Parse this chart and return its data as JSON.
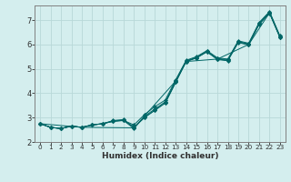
{
  "xlabel": "Humidex (Indice chaleur)",
  "bg_color": "#d4eeee",
  "grid_color": "#b8d8d8",
  "line_color": "#006666",
  "xlim": [
    -0.5,
    23.5
  ],
  "ylim": [
    2.0,
    7.6
  ],
  "yticks": [
    2,
    3,
    4,
    5,
    6,
    7
  ],
  "xticks": [
    0,
    1,
    2,
    3,
    4,
    5,
    6,
    7,
    8,
    9,
    10,
    11,
    12,
    13,
    14,
    15,
    16,
    17,
    18,
    19,
    20,
    21,
    22,
    23
  ],
  "series1": [
    [
      0,
      2.75
    ],
    [
      1,
      2.6
    ],
    [
      2,
      2.55
    ],
    [
      3,
      2.65
    ],
    [
      4,
      2.6
    ],
    [
      5,
      2.7
    ],
    [
      6,
      2.75
    ],
    [
      7,
      2.88
    ],
    [
      8,
      2.92
    ],
    [
      9,
      2.6
    ],
    [
      10,
      3.0
    ],
    [
      11,
      3.3
    ],
    [
      12,
      3.6
    ],
    [
      13,
      4.45
    ],
    [
      14,
      5.3
    ],
    [
      15,
      5.45
    ],
    [
      16,
      5.7
    ],
    [
      17,
      5.4
    ],
    [
      18,
      5.35
    ],
    [
      19,
      6.1
    ],
    [
      20,
      6.0
    ],
    [
      21,
      6.85
    ],
    [
      22,
      7.3
    ],
    [
      23,
      6.3
    ]
  ],
  "series2": [
    [
      0,
      2.75
    ],
    [
      1,
      2.6
    ],
    [
      2,
      2.55
    ],
    [
      3,
      2.65
    ],
    [
      4,
      2.6
    ],
    [
      5,
      2.7
    ],
    [
      6,
      2.75
    ],
    [
      7,
      2.85
    ],
    [
      8,
      2.88
    ],
    [
      9,
      2.55
    ],
    [
      10,
      3.05
    ],
    [
      11,
      3.35
    ],
    [
      12,
      3.65
    ],
    [
      13,
      4.5
    ],
    [
      14,
      5.32
    ],
    [
      15,
      5.48
    ],
    [
      16,
      5.72
    ],
    [
      17,
      5.42
    ],
    [
      18,
      5.38
    ],
    [
      19,
      6.12
    ],
    [
      20,
      6.02
    ],
    [
      21,
      6.87
    ],
    [
      22,
      7.32
    ],
    [
      23,
      6.32
    ]
  ],
  "series3": [
    [
      0,
      2.75
    ],
    [
      1,
      2.6
    ],
    [
      2,
      2.55
    ],
    [
      3,
      2.65
    ],
    [
      4,
      2.6
    ],
    [
      5,
      2.7
    ],
    [
      6,
      2.75
    ],
    [
      7,
      2.85
    ],
    [
      8,
      2.88
    ],
    [
      9,
      2.7
    ],
    [
      10,
      3.12
    ],
    [
      11,
      3.45
    ],
    [
      12,
      3.72
    ],
    [
      13,
      4.55
    ],
    [
      14,
      5.35
    ],
    [
      15,
      5.5
    ],
    [
      16,
      5.75
    ],
    [
      17,
      5.45
    ],
    [
      18,
      5.4
    ],
    [
      19,
      6.15
    ],
    [
      20,
      6.05
    ],
    [
      21,
      6.9
    ],
    [
      22,
      7.35
    ],
    [
      23,
      6.35
    ]
  ],
  "series4": [
    [
      0,
      2.75
    ],
    [
      1,
      2.6
    ],
    [
      2,
      2.55
    ],
    [
      3,
      2.65
    ],
    [
      4,
      2.6
    ],
    [
      5,
      2.7
    ],
    [
      6,
      2.75
    ],
    [
      7,
      2.85
    ],
    [
      8,
      2.9
    ],
    [
      9,
      2.6
    ],
    [
      10,
      3.0
    ],
    [
      11,
      3.3
    ],
    [
      12,
      3.6
    ],
    [
      13,
      4.45
    ],
    [
      14,
      5.3
    ],
    [
      15,
      5.45
    ],
    [
      16,
      5.7
    ],
    [
      17,
      5.38
    ],
    [
      18,
      5.33
    ],
    [
      19,
      6.08
    ],
    [
      20,
      5.98
    ],
    [
      21,
      6.82
    ],
    [
      22,
      7.28
    ],
    [
      23,
      6.28
    ]
  ],
  "series_outlier": [
    [
      0,
      2.75
    ],
    [
      4,
      2.6
    ],
    [
      9,
      2.58
    ],
    [
      13,
      4.5
    ],
    [
      14,
      5.3
    ],
    [
      17,
      5.4
    ],
    [
      20,
      6.0
    ],
    [
      22,
      7.3
    ],
    [
      23,
      6.3
    ]
  ]
}
